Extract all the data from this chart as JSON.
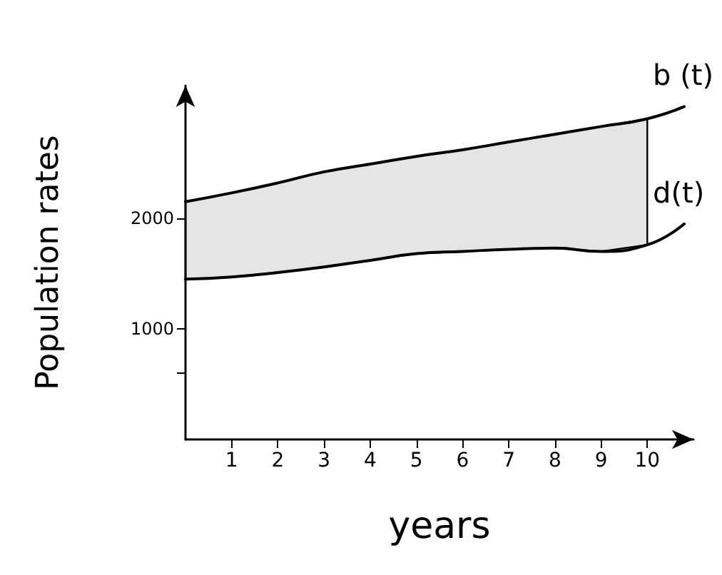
{
  "chart_data": {
    "type": "line",
    "xlabel": "years",
    "ylabel": "Population rates",
    "xlim": [
      0,
      11
    ],
    "xticks": [
      1,
      2,
      3,
      4,
      5,
      6,
      7,
      8,
      9,
      10
    ],
    "ylim": [
      0,
      3200
    ],
    "yticks": [
      {
        "value": 600,
        "label": null
      },
      1000,
      2000
    ],
    "x": [
      0,
      1,
      2,
      3,
      4,
      5,
      6,
      7,
      8,
      9,
      10,
      10.8
    ],
    "series": [
      {
        "name": "b (t)",
        "color": "#000000",
        "values": [
          2150,
          2230,
          2320,
          2420,
          2490,
          2560,
          2620,
          2690,
          2760,
          2830,
          2900,
          3010
        ]
      },
      {
        "name": "d(t)",
        "color": "#000000",
        "values": [
          1450,
          1470,
          1510,
          1560,
          1620,
          1680,
          1700,
          1720,
          1730,
          1700,
          1760,
          1950
        ]
      }
    ],
    "grid": false,
    "legend": false,
    "marker": "none",
    "line_style": "solid"
  }
}
